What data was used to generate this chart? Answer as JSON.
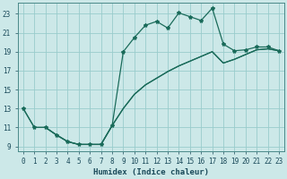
{
  "title": "",
  "xlabel": "Humidex (Indice chaleur)",
  "bg_color": "#cce8e8",
  "grid_color": "#99cccc",
  "line_color": "#1a6b5a",
  "xlim": [
    -0.5,
    23.5
  ],
  "ylim": [
    8.5,
    24.2
  ],
  "xticks": [
    0,
    1,
    2,
    3,
    4,
    5,
    6,
    7,
    8,
    9,
    10,
    11,
    12,
    13,
    14,
    15,
    16,
    17,
    18,
    19,
    20,
    21,
    22,
    23
  ],
  "yticks": [
    9,
    11,
    13,
    15,
    17,
    19,
    21,
    23
  ],
  "line1_x": [
    0,
    1,
    2,
    3,
    4,
    5,
    6,
    7,
    8,
    9,
    10,
    11,
    12,
    13,
    14,
    15,
    16,
    17,
    18,
    19,
    20,
    21,
    22,
    23
  ],
  "line1_y": [
    13,
    11,
    11,
    10.2,
    9.5,
    9.2,
    9.2,
    9.2,
    11.2,
    19.0,
    20.5,
    21.8,
    22.2,
    21.5,
    23.1,
    22.7,
    22.3,
    23.6,
    19.8,
    19.1,
    19.2,
    19.5,
    19.5,
    19.1
  ],
  "line2_x": [
    2,
    3,
    4,
    5,
    6,
    7,
    8,
    9,
    10,
    11,
    12,
    13,
    14,
    15,
    16,
    17,
    18,
    19,
    20,
    21,
    22,
    23
  ],
  "line2_y": [
    11,
    10.2,
    9.5,
    9.2,
    9.2,
    9.2,
    11.2,
    13.0,
    14.5,
    15.5,
    16.2,
    16.9,
    17.5,
    18.0,
    18.5,
    19.0,
    17.8,
    18.2,
    18.7,
    19.2,
    19.3,
    19.1
  ],
  "line3_x": [
    0,
    1,
    2,
    3,
    4,
    5,
    6,
    7,
    8,
    9,
    10,
    11,
    12,
    13,
    14,
    15,
    16,
    17,
    18,
    19,
    20,
    21,
    22,
    23
  ],
  "line3_y": [
    13,
    11,
    11,
    10.2,
    9.5,
    9.2,
    9.2,
    9.2,
    11.2,
    13.0,
    14.5,
    15.5,
    16.2,
    16.9,
    17.5,
    18.0,
    18.5,
    19.0,
    17.8,
    18.2,
    18.7,
    19.2,
    19.3,
    19.1
  ]
}
